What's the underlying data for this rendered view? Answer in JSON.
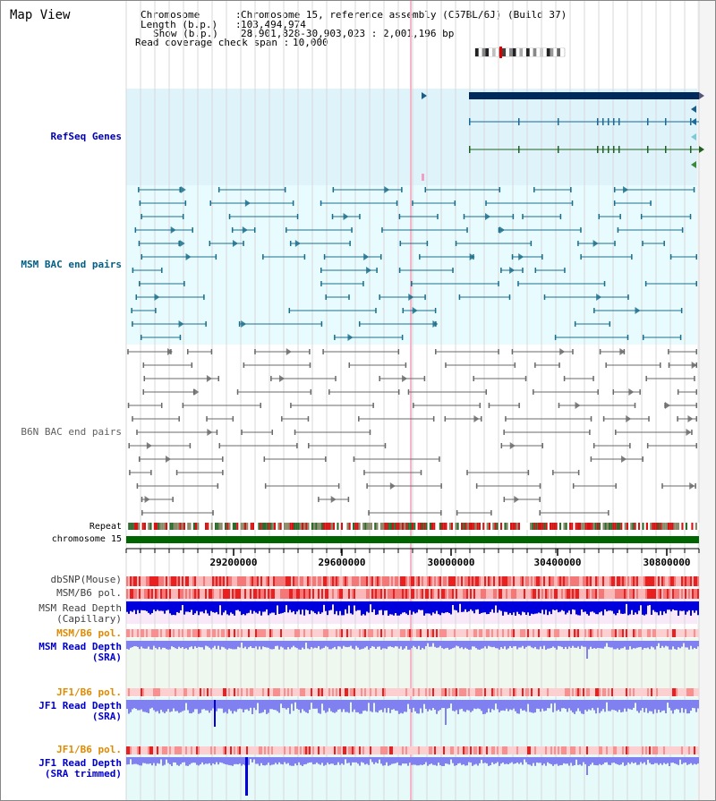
{
  "header": {
    "title": "Map View",
    "chromosome_key": "Chromosome      :",
    "chromosome_value": "Chromosome 15, reference assembly (C57BL/6J) (Build 37)",
    "length_key": "Length (b.p.)   :",
    "length_value": "103,494,974",
    "show_key": "Show (b.p.)     :",
    "show_value": "28,901,828-30,903,023 : 2,001,196 bp",
    "coverage_key": "Read coverage check span :",
    "coverage_value": "10,000"
  },
  "tracks": {
    "refseq": {
      "label": "RefSeq Genes",
      "color": "#0000aa"
    },
    "msm_bac": {
      "label": "MSM BAC end pairs",
      "color": "#005f86"
    },
    "b6n_bac": {
      "label": "B6N BAC end pairs",
      "color": "#606060"
    },
    "repeat": {
      "label": "Repeat"
    },
    "chromosome": {
      "label": "chromosome 15"
    },
    "dbsnp": {
      "label": "dbSNP(Mouse)",
      "color": "#404040"
    },
    "msm_b6_pol_1": {
      "label": "MSM/B6 pol.",
      "color": "#404040"
    },
    "msm_depth_cap": {
      "label1": "MSM Read Depth",
      "label2": "(Capillary)",
      "color": "#404040"
    },
    "msm_b6_pol_2": {
      "label": "MSM/B6 pol.",
      "color": "#e08a00"
    },
    "msm_depth_sra": {
      "label1": "MSM Read Depth",
      "label2": "(SRA)",
      "color": "#0000cc"
    },
    "jf1_b6_pol_1": {
      "label": "JF1/B6 pol.",
      "color": "#e08a00"
    },
    "jf1_depth_sra": {
      "label1": "JF1 Read Depth",
      "label2": "(SRA)",
      "color": "#0000cc"
    },
    "jf1_b6_pol_2": {
      "label": "JF1/B6 pol.",
      "color": "#e08a00"
    },
    "jf1_depth_trim": {
      "label1": "JF1 Read Depth",
      "label2": "(SRA trimmed)",
      "color": "#0000cc"
    }
  },
  "axis": {
    "ticks": [
      "29200000",
      "29600000",
      "30000000",
      "30400000",
      "30800000"
    ],
    "colors": {
      "refseq_bg": "#dff3fb",
      "msm_bg": "#e8fbff",
      "gene_dark": "#002a5c",
      "chromosome_bar": "#006400",
      "cap_bg": "#f8e8f8",
      "sra_bg": "#eff8ef",
      "jf1_bg": "#e6fafa",
      "depth_dark": "#0000dd",
      "depth_light": "#8080f0"
    }
  }
}
